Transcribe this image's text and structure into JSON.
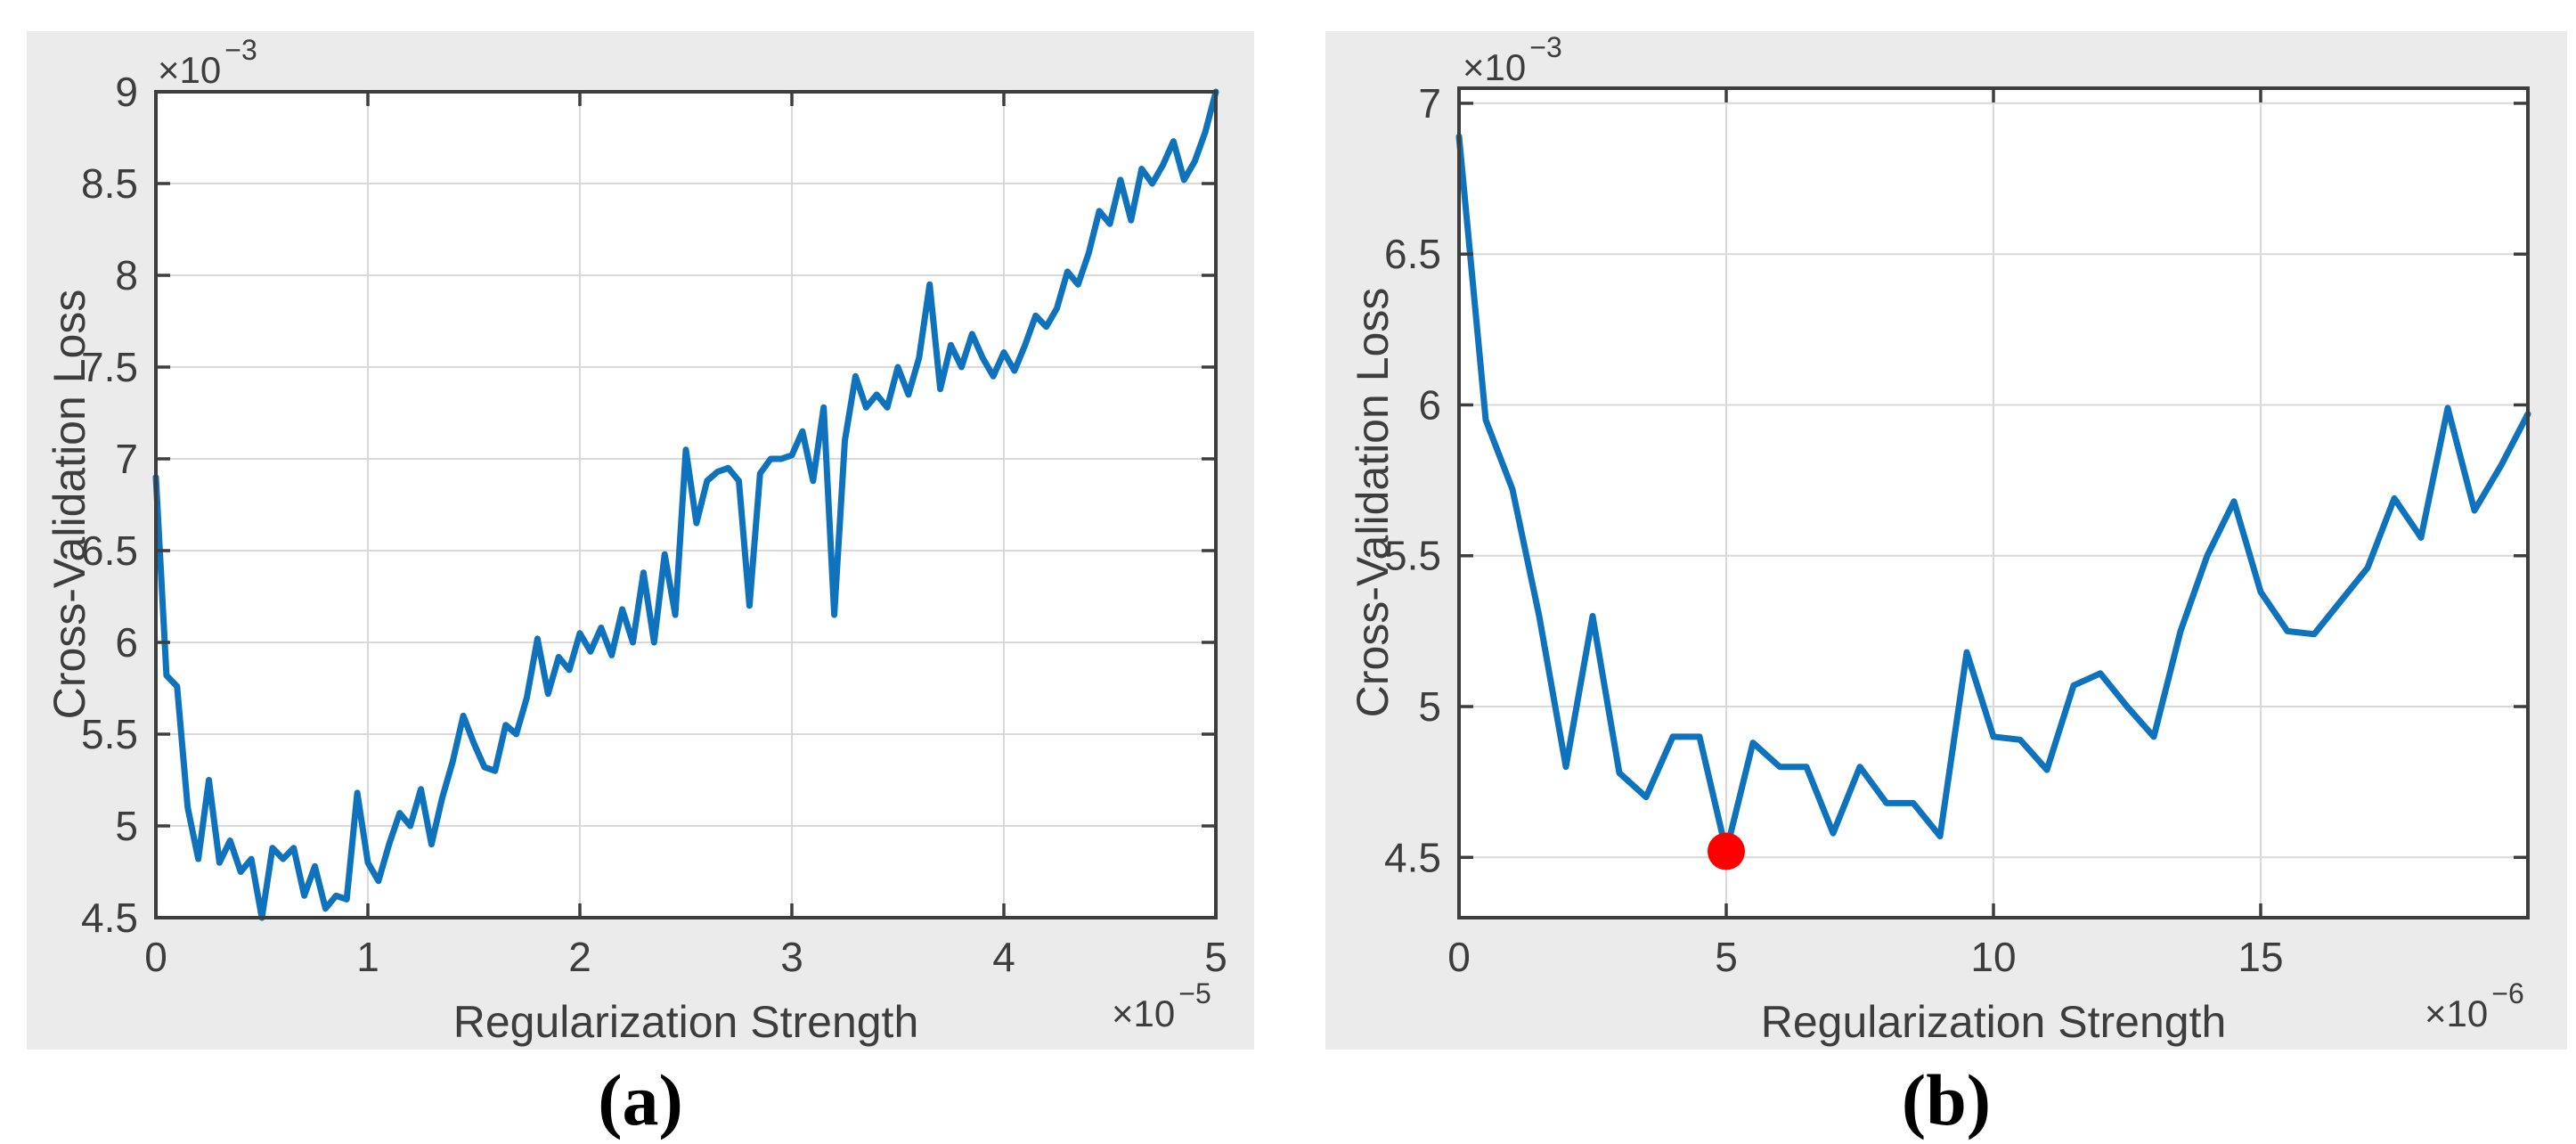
{
  "figure": {
    "background": "#ffffff",
    "panel_background": "#ebebeb",
    "plot_background": "#ffffff",
    "grid_color": "#d9d9d9",
    "axis_color": "#3d3d3d",
    "captions": {
      "a": "(a)",
      "b": "(b)"
    }
  },
  "chart_data": [
    {
      "id": "a",
      "type": "line",
      "title": "",
      "xlabel": "Regularization Strength",
      "ylabel": "Cross-Validation Loss",
      "x_scale_label": {
        "base": "×10",
        "exp": "−5"
      },
      "y_scale_label": {
        "base": "×10",
        "exp": "−3"
      },
      "xlim": [
        0,
        5
      ],
      "ylim": [
        4.5,
        9
      ],
      "xticks": [
        0,
        1,
        2,
        3,
        4,
        5
      ],
      "yticks": [
        4.5,
        5,
        5.5,
        6,
        6.5,
        7,
        7.5,
        8,
        8.5,
        9
      ],
      "grid": true,
      "legend": null,
      "line_color": "#0e72bd",
      "x_start": 0,
      "x_step": 0.05,
      "y": [
        6.9,
        5.82,
        5.76,
        5.1,
        4.82,
        5.25,
        4.8,
        4.92,
        4.75,
        4.82,
        4.5,
        4.88,
        4.82,
        4.88,
        4.62,
        4.78,
        4.55,
        4.62,
        4.6,
        5.18,
        4.8,
        4.7,
        4.9,
        5.07,
        5.0,
        5.2,
        4.9,
        5.15,
        5.35,
        5.6,
        5.45,
        5.32,
        5.3,
        5.55,
        5.5,
        5.7,
        6.02,
        5.72,
        5.92,
        5.85,
        6.05,
        5.95,
        6.08,
        5.93,
        6.18,
        6.0,
        6.38,
        6.0,
        6.48,
        6.15,
        7.05,
        6.65,
        6.88,
        6.93,
        6.95,
        6.88,
        6.2,
        6.92,
        7.0,
        7.0,
        7.02,
        7.15,
        6.88,
        7.28,
        6.15,
        7.1,
        7.45,
        7.28,
        7.35,
        7.28,
        7.5,
        7.35,
        7.55,
        7.95,
        7.38,
        7.62,
        7.5,
        7.68,
        7.55,
        7.45,
        7.58,
        7.48,
        7.62,
        7.78,
        7.72,
        7.82,
        8.02,
        7.95,
        8.12,
        8.35,
        8.28,
        8.52,
        8.3,
        8.58,
        8.5,
        8.6,
        8.73,
        8.52,
        8.62,
        8.78,
        9.0
      ]
    },
    {
      "id": "b",
      "type": "line",
      "title": "",
      "xlabel": "Regularization Strength",
      "ylabel": "Cross-Validation Loss",
      "x_scale_label": {
        "base": "×10",
        "exp": "−6"
      },
      "y_scale_label": {
        "base": "×10",
        "exp": "−3"
      },
      "xlim": [
        0,
        20
      ],
      "ylim": [
        4.3,
        7.05
      ],
      "xticks": [
        0,
        5,
        10,
        15
      ],
      "yticks": [
        4.5,
        5,
        5.5,
        6,
        6.5,
        7
      ],
      "grid": true,
      "legend": null,
      "line_color": "#0e72bd",
      "x_start": 0,
      "x_step": 0.5,
      "y": [
        6.89,
        5.95,
        5.72,
        5.3,
        4.8,
        5.3,
        4.78,
        4.7,
        4.9,
        4.9,
        4.52,
        4.88,
        4.8,
        4.8,
        4.58,
        4.8,
        4.68,
        4.68,
        4.57,
        5.18,
        4.9,
        4.89,
        4.79,
        5.07,
        5.11,
        5.0,
        4.9,
        5.25,
        5.5,
        5.68,
        5.38,
        5.25,
        5.24,
        5.35,
        5.46,
        5.69,
        5.56,
        5.99,
        5.65,
        5.8,
        5.97
      ],
      "marker": {
        "x": 5,
        "y": 4.52,
        "color": "#ff0000",
        "name": "minimum-loss-point"
      }
    }
  ]
}
